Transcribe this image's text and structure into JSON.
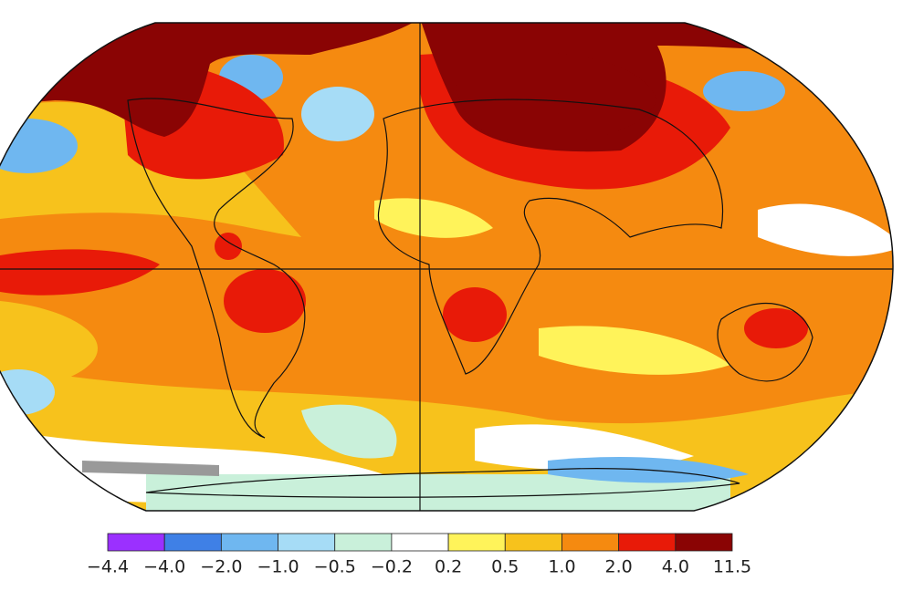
{
  "colorbar": {
    "ticks": [
      {
        "value": -4.4,
        "label": "−4.4"
      },
      {
        "value": -4.0,
        "label": "−4.0"
      },
      {
        "value": -2.0,
        "label": "−2.0"
      },
      {
        "value": -1.0,
        "label": "−1.0"
      },
      {
        "value": -0.5,
        "label": "−0.5"
      },
      {
        "value": -0.2,
        "label": "−0.2"
      },
      0.2,
      0.5,
      {
        "value": 1.0,
        "label": "1.0"
      },
      {
        "value": 2.0,
        "label": "2.0"
      },
      {
        "value": 4.0,
        "label": "4.0"
      },
      11.5
    ],
    "colors": [
      "#9b30ff",
      "#3f80e6",
      "#6fb7f0",
      "#a6dcf6",
      "#c9f0da",
      "#ffffff",
      "#fff35a",
      "#f7c21c",
      "#f58a10",
      "#e81a08",
      "#8a0404"
    ]
  }
}
